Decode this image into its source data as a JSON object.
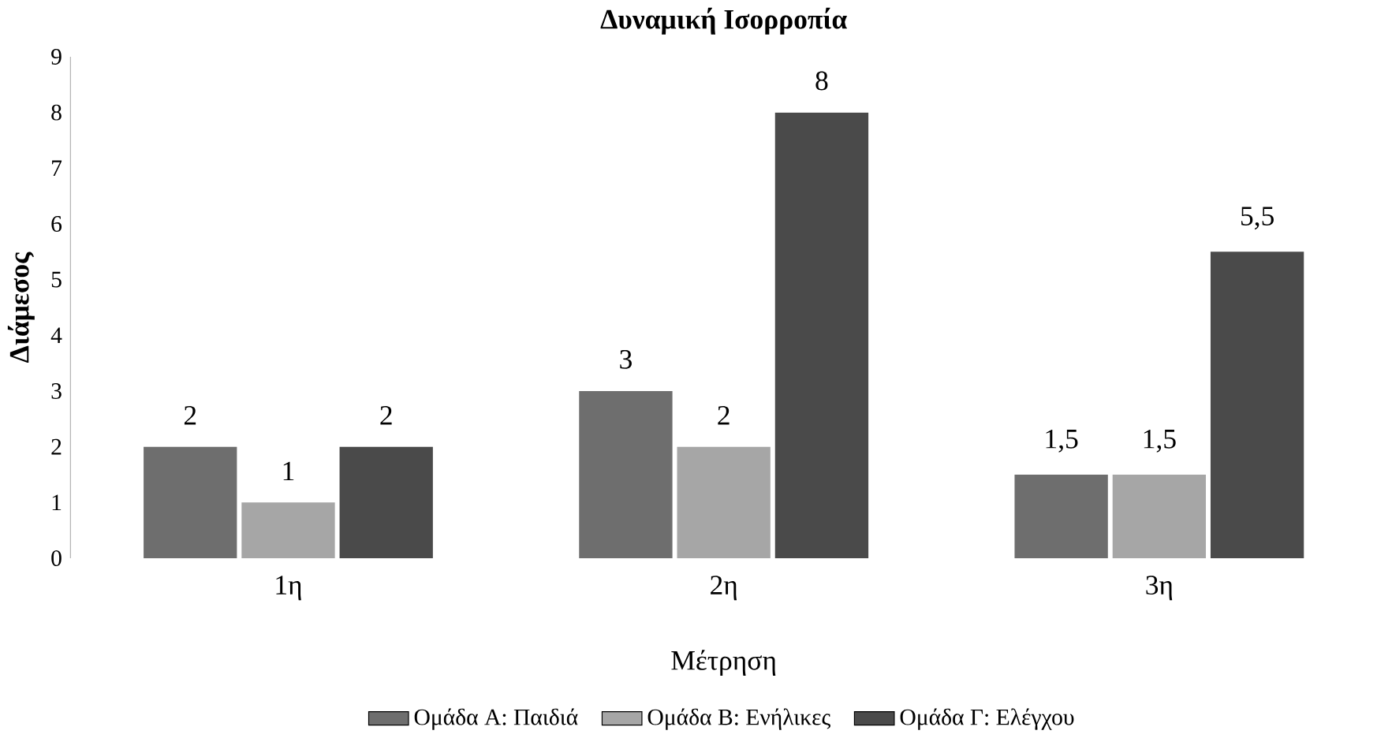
{
  "chart_data": {
    "type": "bar",
    "title": "**Δυναμική Ισορροπία**",
    "xlabel": "Μέτρηση",
    "ylabel": "**Διάμεσος**",
    "categories": [
      "1η",
      "2η",
      "3η"
    ],
    "series": [
      {
        "name": "Ομάδα Α: Παιδιά",
        "color": "#6e6e6e",
        "values": [
          2,
          3,
          1.5
        ],
        "value_labels": [
          "2",
          "3",
          "1,5"
        ]
      },
      {
        "name": "Ομάδα Β: Ενήλικες",
        "color": "#a6a6a6",
        "values": [
          1,
          2,
          1.5
        ],
        "value_labels": [
          "1",
          "2",
          "1,5"
        ]
      },
      {
        "name": "Ομάδα Γ: Ελέγχου",
        "color": "#4a4a4a",
        "values": [
          2,
          8,
          5.5
        ],
        "value_labels": [
          "2",
          "8",
          "5,5"
        ]
      }
    ],
    "ylim": [
      0,
      9
    ],
    "yticks": [
      0,
      1,
      2,
      3,
      4,
      5,
      6,
      7,
      8,
      9
    ],
    "grid": false,
    "legend": "bottom"
  }
}
